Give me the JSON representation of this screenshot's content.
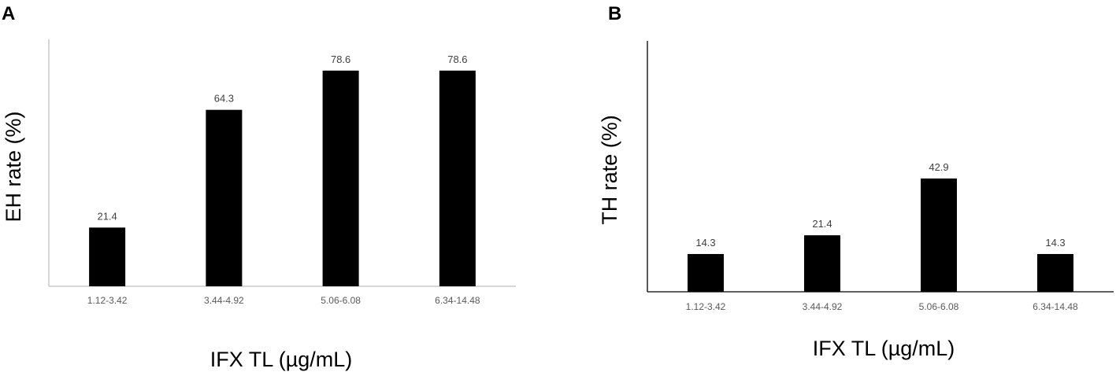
{
  "chart_data": [
    {
      "type": "bar",
      "panel": "A",
      "categories": [
        "1.12-3.42",
        "3.44-4.92",
        "5.06-6.08",
        "6.34-14.48"
      ],
      "values": [
        21.4,
        64.3,
        78.6,
        78.6
      ],
      "data_labels": [
        "21.4",
        "64.3",
        "78.6",
        "78.6"
      ],
      "xlabel": "IFX TL (µg/mL)",
      "ylabel": "EH rate (%)",
      "ylim": [
        0,
        90
      ],
      "bar_color": "#000000",
      "grid": false,
      "legend": "none"
    },
    {
      "type": "bar",
      "panel": "B",
      "categories": [
        "1.12-3.42",
        "3.44-4.92",
        "5.06-6.08",
        "6.34-14.48"
      ],
      "values": [
        14.3,
        21.4,
        42.9,
        14.3
      ],
      "data_labels": [
        "14.3",
        "21.4",
        "42.9",
        "14.3"
      ],
      "xlabel": "IFX TL (µg/mL)",
      "ylabel": "TH rate (%)",
      "ylim": [
        0,
        95
      ],
      "bar_color": "#000000",
      "grid": false,
      "legend": "none"
    }
  ]
}
